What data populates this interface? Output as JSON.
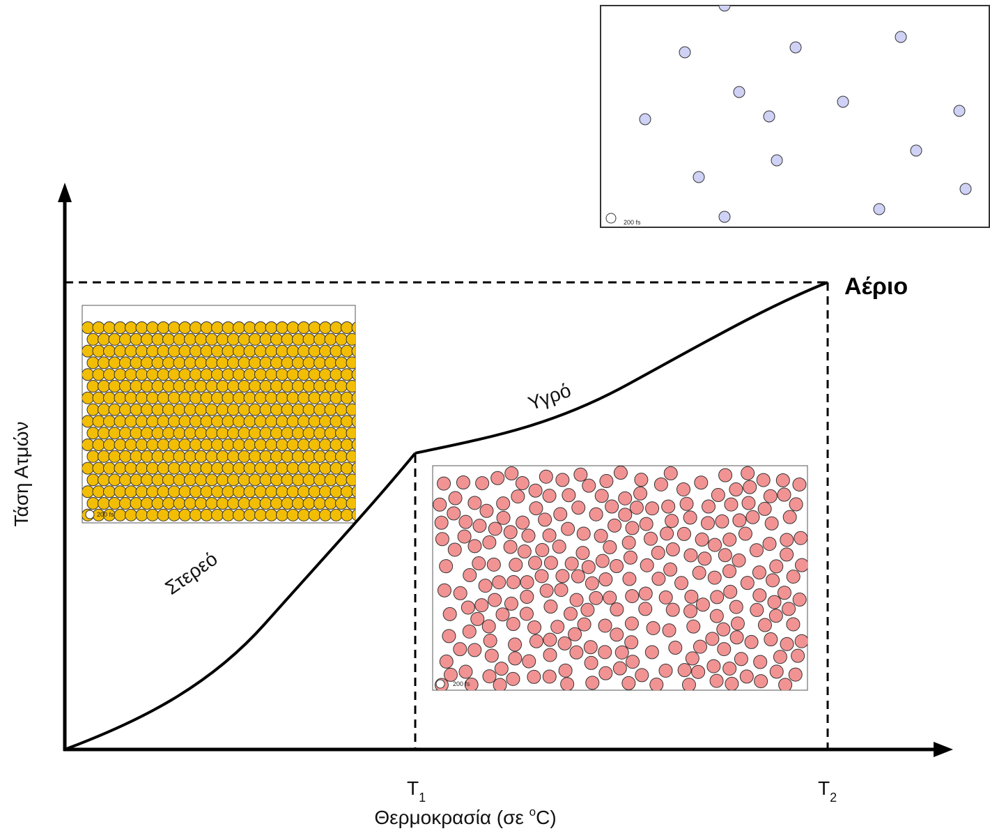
{
  "y_axis_label": "Τάση Ατμών",
  "x_axis_label": {
    "before": "Θερμοκρασία (σε ",
    "sup": "o",
    "after": "C)"
  },
  "ticks": [
    {
      "main": "T",
      "sub": "1"
    },
    {
      "main": "T",
      "sub": "2"
    }
  ],
  "phases": {
    "solid": "Στερεό",
    "liquid": "Υγρό",
    "gas": "Αέριο"
  },
  "insets": {
    "solid_time": "200 fs",
    "liquid_time": "200 fs",
    "gas_time": "200 fs"
  }
}
